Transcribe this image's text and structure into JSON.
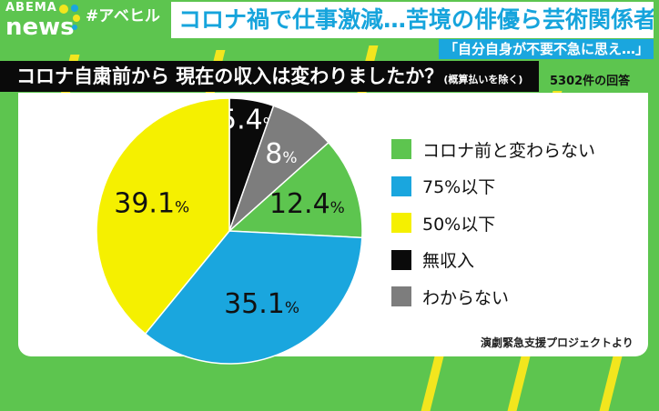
{
  "header": {
    "logo_top": "ABEMA",
    "logo_bottom": "news",
    "hashtag": "#アベヒル",
    "headline": "コロナ禍で仕事激減…苦境の俳優ら芸術関係者",
    "subheadline": "「自分自身が不要不急に思え…」"
  },
  "question": {
    "text": "コロナ自粛前から 現在の収入は変わりましたか？",
    "note": "(概算払いを除く)"
  },
  "response_count": "5302件の回答",
  "source": "演劇緊急支援プロジェクトより",
  "chart_data": {
    "type": "pie",
    "start": "12 o'clock, clockwise",
    "slices": [
      {
        "label": "無収入",
        "value": 5.4,
        "display": "5.4",
        "unit": "%",
        "color": "#0a0a0a",
        "text_color": "#ffffff"
      },
      {
        "label": "わからない",
        "value": 8,
        "display": "8",
        "unit": "%",
        "color": "#7d7d7d",
        "text_color": "#ffffff"
      },
      {
        "label": "コロナ前と変わらない",
        "value": 12.4,
        "display": "12.4",
        "unit": "%",
        "color": "#5dc54f",
        "text_color": "#111111"
      },
      {
        "label": "75%以下",
        "value": 35.1,
        "display": "35.1",
        "unit": "%",
        "color": "#1aa6de",
        "text_color": "#111111"
      },
      {
        "label": "50%以下",
        "value": 39.1,
        "display": "39.1",
        "unit": "%",
        "color": "#f5f000",
        "text_color": "#111111"
      }
    ],
    "legend": [
      "コロナ前と変わらない",
      "75%以下",
      "50%以下",
      "無収入",
      "わからない"
    ],
    "legend_colors": [
      "#5dc54f",
      "#1aa6de",
      "#f5f000",
      "#0a0a0a",
      "#7d7d7d"
    ],
    "legend_placement": "right"
  }
}
